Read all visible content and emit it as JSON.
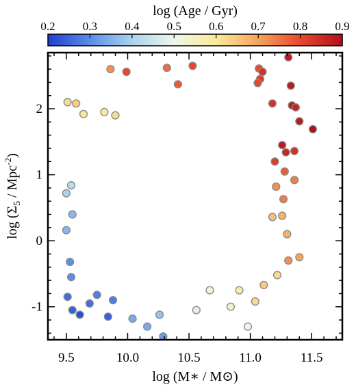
{
  "chart_data": {
    "type": "scatter",
    "xlabel": "log (M∗ / M⊙)",
    "ylabel_main": "log (Σ",
    "ylabel_sub": "5",
    "ylabel_rest": " / Mpc",
    "ylabel_sup": "-2",
    "ylabel_end": ")",
    "xlim": [
      9.35,
      11.75
    ],
    "ylim": [
      -1.5,
      2.85
    ],
    "xticks": [
      "9.5",
      "10.0",
      "10.5",
      "11.0",
      "11.5"
    ],
    "yticks": [
      "-1",
      "0",
      "1",
      "2"
    ],
    "grid": false,
    "colorbar": {
      "label": "log (Age / Gyr)",
      "range": [
        0.2,
        0.9
      ],
      "ticks": [
        "0.2",
        "0.3",
        "0.4",
        "0.5",
        "0.6",
        "0.7",
        "0.8",
        "0.9"
      ],
      "colormap": [
        "#1f3fd0",
        "#5a8ee8",
        "#a9d3ee",
        "#eef6ea",
        "#fbe99a",
        "#f6a45c",
        "#e8472e",
        "#b0101a"
      ],
      "position": "top"
    },
    "points": [
      [
        9.86,
        2.6,
        0.72
      ],
      [
        9.99,
        2.56,
        0.8
      ],
      [
        10.32,
        2.62,
        0.76
      ],
      [
        10.53,
        2.65,
        0.8
      ],
      [
        11.07,
        2.61,
        0.8
      ],
      [
        11.1,
        2.56,
        0.84
      ],
      [
        11.31,
        2.78,
        0.88
      ],
      [
        11.33,
        2.35,
        0.88
      ],
      [
        11.08,
        2.45,
        0.82
      ],
      [
        11.06,
        2.39,
        0.8
      ],
      [
        10.41,
        2.37,
        0.78
      ],
      [
        11.51,
        1.69,
        0.9
      ],
      [
        11.4,
        1.81,
        0.88
      ],
      [
        11.34,
        2.05,
        0.88
      ],
      [
        11.37,
        2.02,
        0.86
      ],
      [
        11.18,
        2.08,
        0.84
      ],
      [
        11.26,
        1.45,
        0.88
      ],
      [
        11.36,
        1.36,
        0.84
      ],
      [
        11.29,
        1.34,
        0.86
      ],
      [
        11.2,
        1.2,
        0.82
      ],
      [
        11.28,
        1.05,
        0.78
      ],
      [
        11.36,
        0.92,
        0.74
      ],
      [
        11.21,
        0.82,
        0.72
      ],
      [
        11.27,
        0.63,
        0.74
      ],
      [
        11.26,
        0.38,
        0.68
      ],
      [
        11.18,
        0.36,
        0.66
      ],
      [
        11.3,
        0.1,
        0.68
      ],
      [
        11.4,
        -0.25,
        0.7
      ],
      [
        11.31,
        -0.3,
        0.72
      ],
      [
        11.22,
        -0.52,
        0.62
      ],
      [
        11.11,
        -0.67,
        0.64
      ],
      [
        11.04,
        -0.92,
        0.62
      ],
      [
        10.98,
        -1.3,
        0.5
      ],
      [
        10.84,
        -1.0,
        0.54
      ],
      [
        9.51,
        2.1,
        0.62
      ],
      [
        9.58,
        2.08,
        0.64
      ],
      [
        9.64,
        1.92,
        0.6
      ],
      [
        9.81,
        1.95,
        0.6
      ],
      [
        9.9,
        1.9,
        0.62
      ],
      [
        9.54,
        0.84,
        0.42
      ],
      [
        9.5,
        0.72,
        0.4
      ],
      [
        9.55,
        0.4,
        0.36
      ],
      [
        9.5,
        0.16,
        0.36
      ],
      [
        9.53,
        -0.32,
        0.3
      ],
      [
        9.54,
        -0.55,
        0.3
      ],
      [
        9.51,
        -0.85,
        0.26
      ],
      [
        9.55,
        -1.05,
        0.24
      ],
      [
        9.61,
        -1.12,
        0.22
      ],
      [
        9.69,
        -0.95,
        0.26
      ],
      [
        9.75,
        -0.82,
        0.28
      ],
      [
        9.84,
        -1.15,
        0.24
      ],
      [
        9.88,
        -0.9,
        0.28
      ],
      [
        10.04,
        -1.18,
        0.34
      ],
      [
        10.16,
        -1.3,
        0.34
      ],
      [
        10.29,
        -1.45,
        0.32
      ],
      [
        10.26,
        -1.12,
        0.38
      ],
      [
        10.56,
        -1.05,
        0.48
      ],
      [
        10.67,
        -0.75,
        0.52
      ],
      [
        10.91,
        -0.75,
        0.58
      ]
    ]
  }
}
